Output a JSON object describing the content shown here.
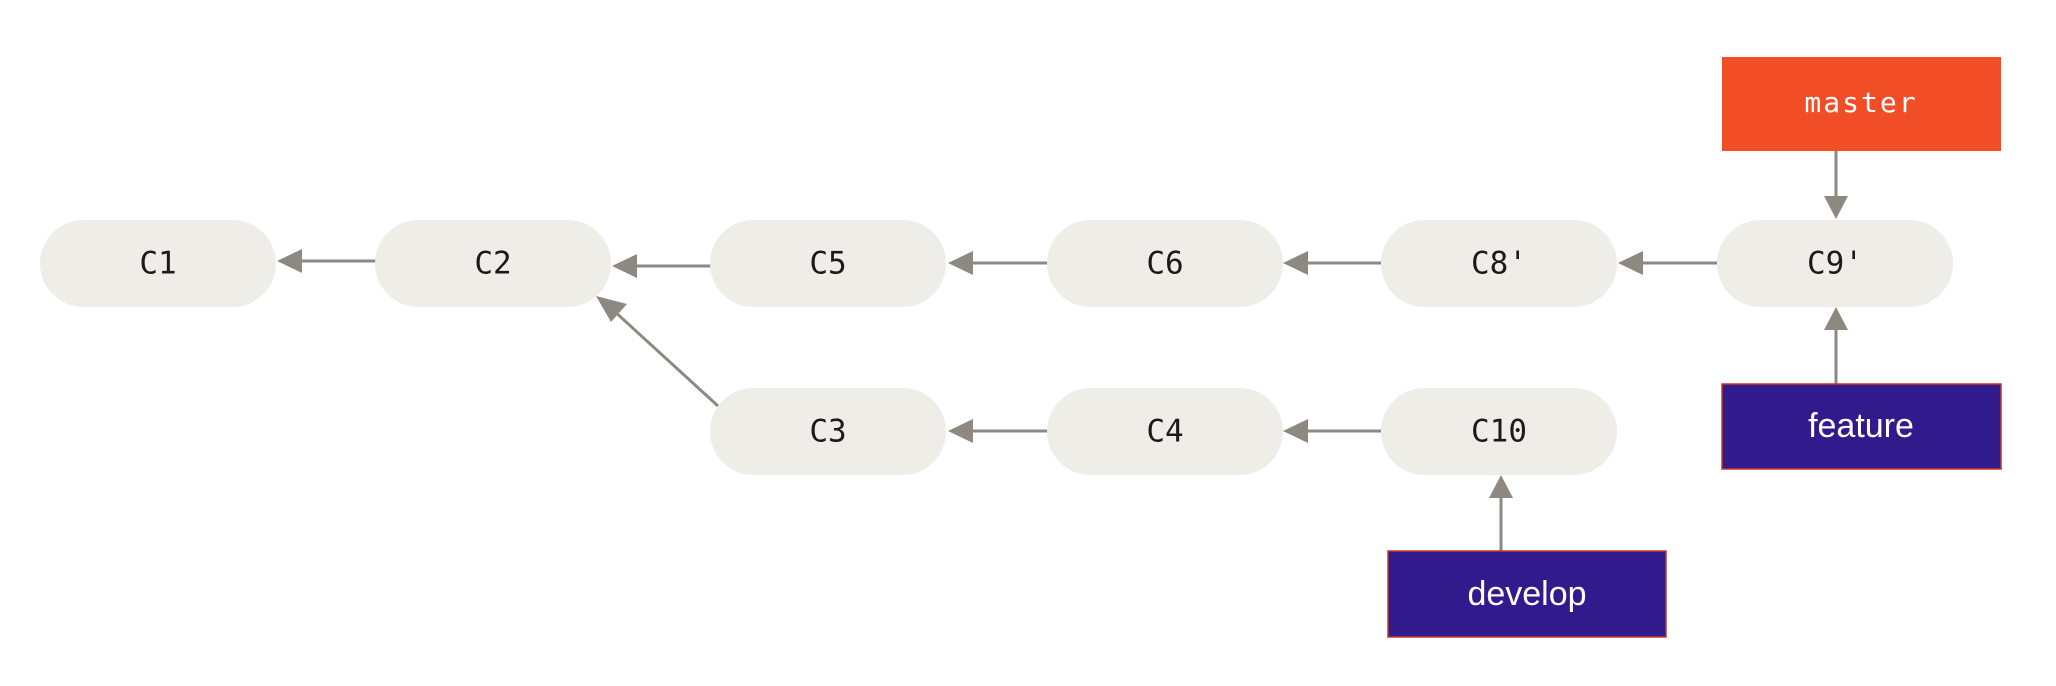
{
  "commits": [
    {
      "id": "c1",
      "label": "C1"
    },
    {
      "id": "c2",
      "label": "C2"
    },
    {
      "id": "c5",
      "label": "C5"
    },
    {
      "id": "c6",
      "label": "C6"
    },
    {
      "id": "c8p",
      "label": "C8'"
    },
    {
      "id": "c9p",
      "label": "C9'"
    },
    {
      "id": "c3",
      "label": "C3"
    },
    {
      "id": "c4",
      "label": "C4"
    },
    {
      "id": "c10",
      "label": "C10"
    }
  ],
  "edges": [
    {
      "from": "C2",
      "to": "C1"
    },
    {
      "from": "C5",
      "to": "C2"
    },
    {
      "from": "C6",
      "to": "C5"
    },
    {
      "from": "C8'",
      "to": "C6"
    },
    {
      "from": "C9'",
      "to": "C8'"
    },
    {
      "from": "C3",
      "to": "C2"
    },
    {
      "from": "C4",
      "to": "C3"
    },
    {
      "from": "C10",
      "to": "C4"
    }
  ],
  "branches": {
    "master": {
      "label": "master",
      "points_to": "C9'",
      "color": "#f14e28"
    },
    "feature": {
      "label": "feature",
      "points_to": "C9'",
      "color": "#311a8c"
    },
    "develop": {
      "label": "develop",
      "points_to": "C10",
      "color": "#311a8c"
    }
  },
  "colors": {
    "commit_fill": "#eeede7",
    "arrow": "#8d8981",
    "branch_border": "#c0392b"
  }
}
